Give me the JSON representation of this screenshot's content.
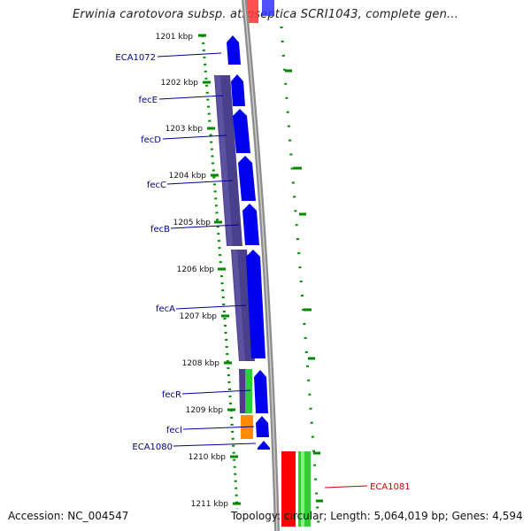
{
  "title": "Erwinia carotovora subsp. atroseptica SCRI1043, complete gen...",
  "footer": {
    "accession": "Accession: NC_004547",
    "summary": "Topology: circular; Length: 5,064,019 bp; Genes: 4,594"
  },
  "kbp_labels": [
    "1201 kbp",
    "1202 kbp",
    "1203 kbp",
    "1204 kbp",
    "1205 kbp",
    "1206 kbp",
    "1207 kbp",
    "1208 kbp",
    "1209 kbp",
    "1210 kbp",
    "1211 kbp"
  ],
  "left_gene_labels": [
    "ECA1072",
    "fecE",
    "fecD",
    "fecC",
    "fecB",
    "fecA",
    "fecR",
    "fecI",
    "ECA1080"
  ],
  "right_gene_labels": [
    "ECA1081"
  ],
  "colors": {
    "gene_blue": "#0000ee",
    "operon_purple": "#4a3f8c",
    "label_blue": "#00008b",
    "label_red": "#cc0000",
    "tick_green": "#008800",
    "gene_red": "#ff0000",
    "gene_green": "#33cc33",
    "gene_orange": "#ff8c00",
    "backbone": "#888888"
  }
}
